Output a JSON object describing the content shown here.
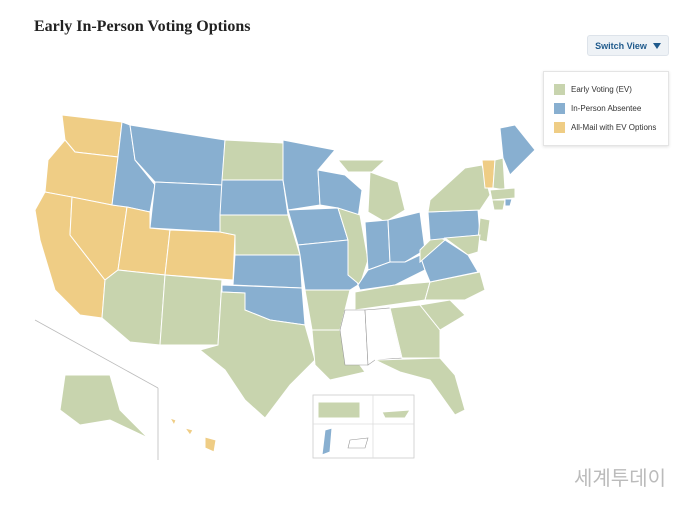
{
  "header": {
    "title": "Early In-Person Voting Options",
    "button": "Switch View"
  },
  "legend": [
    {
      "label": "Early Voting (EV)",
      "color": "#c8d4ae"
    },
    {
      "label": "In-Person Absentee",
      "color": "#88afd0"
    },
    {
      "label": "All-Mail with EV Options",
      "color": "#efcd85"
    }
  ],
  "watermark": "세계투데이"
}
